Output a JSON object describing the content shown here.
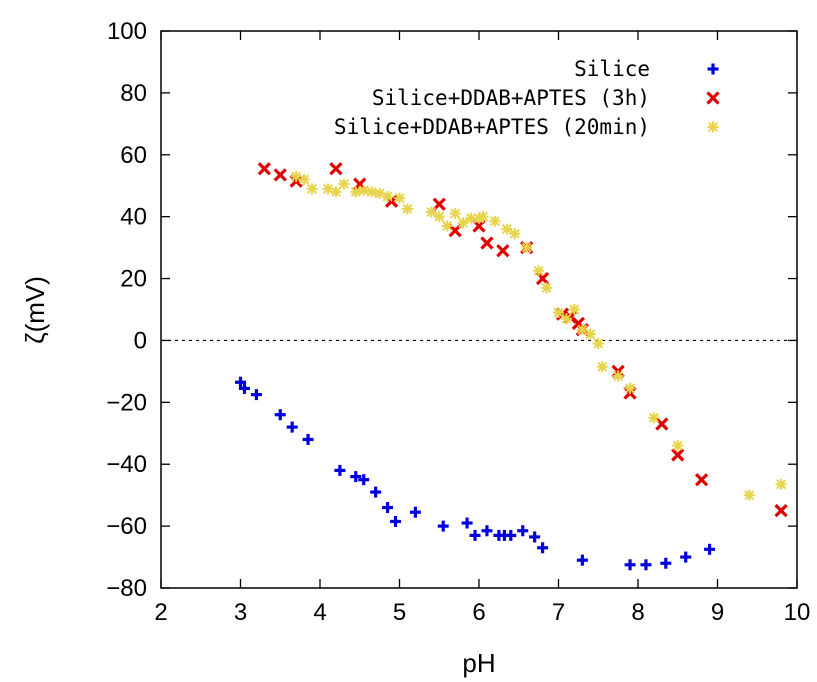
{
  "chart_data": {
    "type": "scatter",
    "xlabel": "pH",
    "ylabel": "ζ(mV)",
    "xlim": [
      2,
      10
    ],
    "ylim": [
      -80,
      100
    ],
    "xticks": [
      2,
      3,
      4,
      5,
      6,
      7,
      8,
      9,
      10
    ],
    "yticks": [
      -80,
      -60,
      -40,
      -20,
      0,
      20,
      40,
      60,
      80,
      100
    ],
    "xtick_labels": [
      "2",
      "3",
      "4",
      "5",
      "6",
      "7",
      "8",
      "9",
      "10"
    ],
    "ytick_labels": [
      "−80",
      "−60",
      "−40",
      "−20",
      "0",
      "20",
      "40",
      "60",
      "80",
      "100"
    ],
    "zero_line": true,
    "grid": false,
    "legend_position": "top-right",
    "series": [
      {
        "name": "Silice",
        "marker": "plus",
        "color": "#0000dd",
        "points": [
          [
            3.0,
            -13.5
          ],
          [
            3.05,
            -15.5
          ],
          [
            3.2,
            -17.5
          ],
          [
            3.5,
            -24
          ],
          [
            3.65,
            -28
          ],
          [
            3.85,
            -32
          ],
          [
            4.25,
            -42
          ],
          [
            4.45,
            -44
          ],
          [
            4.55,
            -45
          ],
          [
            4.7,
            -49
          ],
          [
            4.85,
            -54
          ],
          [
            4.95,
            -58.5
          ],
          [
            5.2,
            -55.5
          ],
          [
            5.55,
            -60
          ],
          [
            5.85,
            -59
          ],
          [
            5.95,
            -63
          ],
          [
            6.1,
            -61.5
          ],
          [
            6.25,
            -63
          ],
          [
            6.32,
            -63
          ],
          [
            6.4,
            -63
          ],
          [
            6.55,
            -61.5
          ],
          [
            6.7,
            -63.5
          ],
          [
            6.8,
            -67
          ],
          [
            7.3,
            -71
          ],
          [
            7.9,
            -72.5
          ],
          [
            8.1,
            -72.5
          ],
          [
            8.35,
            -72
          ],
          [
            8.6,
            -70
          ],
          [
            8.9,
            -67.5
          ]
        ]
      },
      {
        "name": "Silice+DDAB+APTES (3h)",
        "marker": "cross",
        "color": "#e00000",
        "points": [
          [
            3.3,
            55.5
          ],
          [
            3.5,
            53.5
          ],
          [
            3.7,
            51.5
          ],
          [
            4.2,
            55.5
          ],
          [
            4.5,
            50.5
          ],
          [
            4.9,
            45
          ],
          [
            5.5,
            44
          ],
          [
            5.7,
            35.5
          ],
          [
            6.0,
            37
          ],
          [
            6.1,
            31.5
          ],
          [
            6.3,
            29
          ],
          [
            6.6,
            30
          ],
          [
            6.8,
            20
          ],
          [
            7.05,
            8.5
          ],
          [
            7.15,
            7.5
          ],
          [
            7.25,
            5.5
          ],
          [
            7.3,
            3.5
          ],
          [
            7.75,
            -10
          ],
          [
            7.9,
            -17
          ],
          [
            8.3,
            -27
          ],
          [
            8.5,
            -37
          ],
          [
            8.8,
            -45
          ],
          [
            9.8,
            -55
          ]
        ]
      },
      {
        "name": "Silice+DDAB+APTES (20min)",
        "marker": "star",
        "color": "#e8d44a",
        "points": [
          [
            3.7,
            53
          ],
          [
            3.8,
            52
          ],
          [
            3.9,
            49
          ],
          [
            4.1,
            49
          ],
          [
            4.2,
            48
          ],
          [
            4.3,
            50.5
          ],
          [
            4.45,
            48
          ],
          [
            4.55,
            48.5
          ],
          [
            4.65,
            48
          ],
          [
            4.75,
            47.5
          ],
          [
            4.85,
            46.5
          ],
          [
            5.0,
            46
          ],
          [
            5.1,
            42.5
          ],
          [
            5.4,
            41.5
          ],
          [
            5.5,
            40
          ],
          [
            5.6,
            37
          ],
          [
            5.7,
            41
          ],
          [
            5.8,
            38
          ],
          [
            5.9,
            39.5
          ],
          [
            6.0,
            39.5
          ],
          [
            6.05,
            40
          ],
          [
            6.2,
            38.5
          ],
          [
            6.35,
            36
          ],
          [
            6.45,
            34.5
          ],
          [
            6.6,
            30
          ],
          [
            6.75,
            22.5
          ],
          [
            6.85,
            17
          ],
          [
            7.0,
            9
          ],
          [
            7.1,
            7
          ],
          [
            7.2,
            10
          ],
          [
            7.3,
            3.5
          ],
          [
            7.4,
            2
          ],
          [
            7.5,
            -1
          ],
          [
            7.55,
            -8.5
          ],
          [
            7.75,
            -11.5
          ],
          [
            7.9,
            -15.5
          ],
          [
            8.2,
            -25
          ],
          [
            8.5,
            -34
          ],
          [
            9.4,
            -50
          ],
          [
            9.8,
            -46.5
          ]
        ]
      }
    ]
  }
}
